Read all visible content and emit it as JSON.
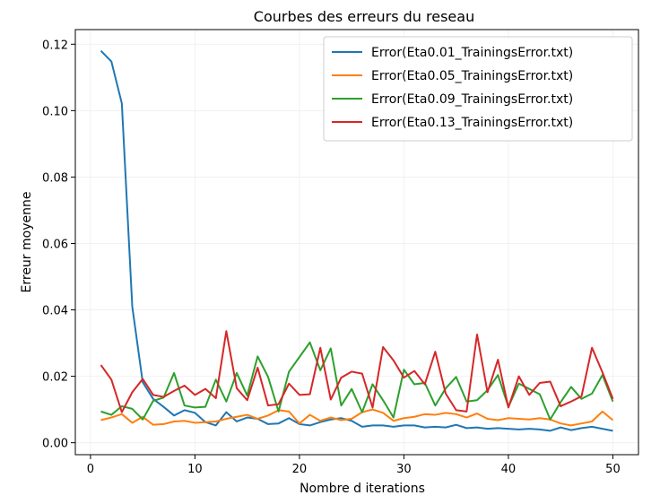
{
  "chart_data": {
    "type": "line",
    "title": "Courbes des erreurs du reseau",
    "xlabel": "Nombre d iterations",
    "ylabel": "Erreur moyenne",
    "xlim": [
      -1.45,
      52.45
    ],
    "ylim": [
      -0.0036,
      0.1244
    ],
    "xticks": [
      0,
      10,
      20,
      30,
      40,
      50
    ],
    "yticks": [
      0.0,
      0.02,
      0.04,
      0.06,
      0.08,
      0.1,
      0.12
    ],
    "ytick_labels": [
      "0.00",
      "0.02",
      "0.04",
      "0.06",
      "0.08",
      "0.10",
      "0.12"
    ],
    "grid": true,
    "legend": "top-right",
    "x": [
      1,
      2,
      3,
      4,
      5,
      6,
      7,
      8,
      9,
      10,
      11,
      12,
      13,
      14,
      15,
      16,
      17,
      18,
      19,
      20,
      21,
      22,
      23,
      24,
      25,
      26,
      27,
      28,
      29,
      30,
      31,
      32,
      33,
      34,
      35,
      36,
      37,
      38,
      39,
      40,
      41,
      42,
      43,
      44,
      45,
      46,
      47,
      48,
      49,
      50
    ],
    "series": [
      {
        "name": "Error(Eta0.01_TrainingsError.txt)",
        "color": "#1f77b4",
        "values": [
          0.118,
          0.1148,
          0.1022,
          0.041,
          0.0182,
          0.0132,
          0.0108,
          0.0082,
          0.0098,
          0.009,
          0.0062,
          0.0052,
          0.0092,
          0.0064,
          0.0076,
          0.0072,
          0.0056,
          0.0058,
          0.0074,
          0.0056,
          0.0052,
          0.0062,
          0.007,
          0.0074,
          0.0066,
          0.0048,
          0.0052,
          0.0052,
          0.0048,
          0.0052,
          0.0052,
          0.0046,
          0.0048,
          0.0046,
          0.0054,
          0.0044,
          0.0046,
          0.0042,
          0.0044,
          0.0042,
          0.004,
          0.0042,
          0.004,
          0.0036,
          0.0046,
          0.0038,
          0.0044,
          0.0048,
          0.0042,
          0.0036
        ]
      },
      {
        "name": "Error(Eta0.05_TrainingsError.txt)",
        "color": "#ff7f0e",
        "values": [
          0.0068,
          0.0076,
          0.0086,
          0.006,
          0.0078,
          0.0054,
          0.0056,
          0.0064,
          0.0066,
          0.006,
          0.0062,
          0.0064,
          0.0072,
          0.0078,
          0.0084,
          0.0072,
          0.0082,
          0.0098,
          0.0094,
          0.0058,
          0.0084,
          0.0066,
          0.0076,
          0.0068,
          0.0072,
          0.0092,
          0.01,
          0.009,
          0.0066,
          0.0074,
          0.0078,
          0.0086,
          0.0084,
          0.009,
          0.0086,
          0.0076,
          0.0088,
          0.0072,
          0.0068,
          0.0074,
          0.0072,
          0.007,
          0.0074,
          0.007,
          0.0058,
          0.0052,
          0.0058,
          0.0064,
          0.0094,
          0.0068
        ]
      },
      {
        "name": "Error(Eta0.09_TrainingsError.txt)",
        "color": "#2ca02c",
        "values": [
          0.0094,
          0.0084,
          0.011,
          0.0102,
          0.007,
          0.0126,
          0.0136,
          0.021,
          0.0112,
          0.0106,
          0.0108,
          0.019,
          0.0124,
          0.021,
          0.0142,
          0.026,
          0.0198,
          0.0094,
          0.0214,
          0.0258,
          0.0302,
          0.0218,
          0.0284,
          0.0112,
          0.0162,
          0.0092,
          0.0176,
          0.0128,
          0.0076,
          0.022,
          0.0176,
          0.018,
          0.0112,
          0.0164,
          0.0198,
          0.0124,
          0.0128,
          0.0158,
          0.0204,
          0.0108,
          0.0178,
          0.0162,
          0.0146,
          0.007,
          0.0122,
          0.0168,
          0.0132,
          0.0148,
          0.0204,
          0.0124
        ]
      },
      {
        "name": "Error(Eta0.13_TrainingsError.txt)",
        "color": "#d62728",
        "values": [
          0.0234,
          0.019,
          0.0092,
          0.0152,
          0.0192,
          0.0144,
          0.0138,
          0.0156,
          0.0172,
          0.0144,
          0.0162,
          0.0134,
          0.0336,
          0.0164,
          0.0128,
          0.0226,
          0.0112,
          0.0116,
          0.0178,
          0.0144,
          0.0146,
          0.0286,
          0.013,
          0.0196,
          0.0214,
          0.0208,
          0.0106,
          0.0288,
          0.0248,
          0.0196,
          0.0216,
          0.0176,
          0.0274,
          0.0148,
          0.0098,
          0.0094,
          0.0326,
          0.0152,
          0.025,
          0.0106,
          0.02,
          0.0144,
          0.018,
          0.0184,
          0.011,
          0.0124,
          0.014,
          0.0286,
          0.0212,
          0.0132
        ]
      }
    ]
  }
}
